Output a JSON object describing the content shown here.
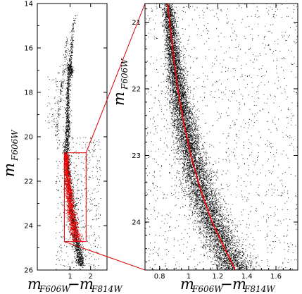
{
  "chart_data": [
    {
      "type": "scatter",
      "panel": "left",
      "description_visible": "full color-magnitude diagram",
      "xlabel": {
        "main_1": "m",
        "sub_1": "F606W",
        "minus": "−",
        "main_2": "m",
        "sub_2": "F814W"
      },
      "ylabel": {
        "main": "m",
        "sub": "F606W"
      },
      "xlim": [
        -0.6,
        2.8
      ],
      "ylim": [
        26,
        14
      ],
      "x_ticks": [
        1,
        2
      ],
      "y_ticks": [
        14,
        16,
        18,
        20,
        22,
        24,
        26
      ],
      "inset_box": {
        "x": [
          0.72,
          1.78
        ],
        "y": [
          20.72,
          24.72
        ]
      },
      "grid": false,
      "series": [
        {
          "color": "#000000",
          "features": {
            "main_sequence": [
              [
                1.5,
                25.6
              ],
              [
                1.25,
                24.5
              ],
              [
                1.07,
                23.3
              ],
              [
                0.95,
                22.2
              ],
              [
                0.85,
                21.3
              ],
              [
                0.8,
                20.6
              ],
              [
                0.83,
                20.0
              ],
              [
                0.88,
                19.4
              ],
              [
                0.87,
                18.6
              ],
              [
                0.89,
                17.8
              ],
              [
                0.97,
                16.9
              ],
              [
                1.05,
                16.0
              ],
              [
                1.15,
                15.0
              ],
              [
                1.25,
                14.5
              ]
            ],
            "horizontal_branch": [
              [
                0.9,
                16.85
              ],
              [
                1.0,
                16.95
              ],
              [
                1.05,
                17.05
              ]
            ],
            "blue_stragglers": [
              [
                0.1,
                18.4
              ],
              [
                0.3,
                19.2
              ],
              [
                0.4,
                18.0
              ],
              [
                0.6,
                17.2
              ]
            ]
          }
        },
        {
          "color": "#ff0000",
          "features": {
            "highlighted_main_sequence": [
              [
                0.78,
                20.8
              ],
              [
                0.83,
                21.5
              ],
              [
                0.9,
                22.2
              ],
              [
                0.98,
                22.9
              ],
              [
                1.08,
                23.6
              ],
              [
                1.2,
                24.2
              ],
              [
                1.35,
                24.7
              ]
            ]
          }
        }
      ]
    },
    {
      "type": "scatter",
      "panel": "right",
      "description_visible": "zoomed main sequence with fiducial line",
      "xlabel": {
        "main_1": "m",
        "sub_1": "F606W",
        "minus": "−",
        "main_2": "m",
        "sub_2": "F814W"
      },
      "ylabel": {
        "main": "m",
        "sub": "F606W"
      },
      "xlim": [
        0.7,
        1.75
      ],
      "ylim": [
        24.72,
        20.72
      ],
      "x_ticks": [
        0.8,
        1.0,
        1.2,
        1.4,
        1.6
      ],
      "x_tick_labels": [
        "0.8",
        "1",
        "1.2",
        "1.4",
        "1.6"
      ],
      "y_ticks": [
        21,
        22,
        23,
        24
      ],
      "grid": false,
      "fiducial_line": {
        "color": "#ff0000",
        "points": [
          [
            0.855,
            20.72
          ],
          [
            0.87,
            21.0
          ],
          [
            0.895,
            21.5
          ],
          [
            0.925,
            22.0
          ],
          [
            0.965,
            22.5
          ],
          [
            1.015,
            23.0
          ],
          [
            1.08,
            23.5
          ],
          [
            1.16,
            24.0
          ],
          [
            1.26,
            24.45
          ],
          [
            1.32,
            24.72
          ]
        ]
      },
      "scatter_color": "#000000"
    }
  ]
}
